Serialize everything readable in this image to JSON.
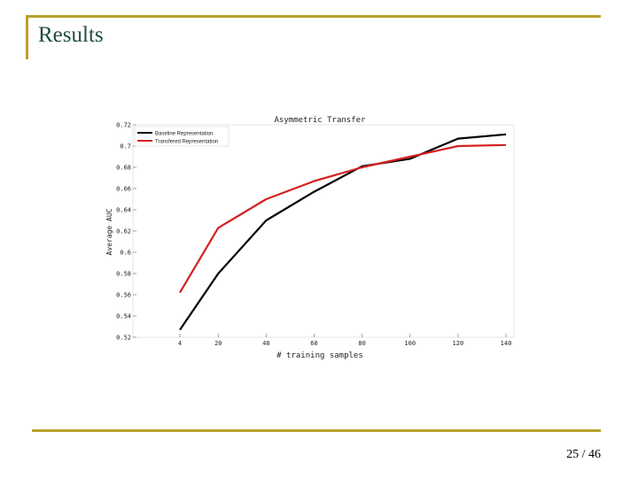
{
  "slide": {
    "title": "Results",
    "page_number": "25",
    "page_total": "46",
    "page_sep": "/"
  },
  "colors": {
    "accent_rule": "#b8a12a",
    "title_text": "#1f4e3f",
    "baseline_series": "#000000",
    "transfered_series": "#d42020"
  },
  "chart_data": {
    "type": "line",
    "title": "Asymmetric Transfer",
    "xlabel": "# training samples",
    "ylabel": "Average AUC",
    "x": [
      4,
      20,
      40,
      60,
      80,
      100,
      120,
      140
    ],
    "x_tick_labels": [
      "4",
      "20",
      "40",
      "60",
      "80",
      "100",
      "120",
      "140"
    ],
    "ylim": [
      0.52,
      0.72
    ],
    "y_ticks": [
      0.52,
      0.54,
      0.56,
      0.58,
      0.6,
      0.62,
      0.64,
      0.66,
      0.68,
      0.7,
      0.72
    ],
    "y_tick_labels": [
      "0.52",
      "0.54",
      "0.56",
      "0.58",
      "0.6",
      "0.62",
      "0.64",
      "0.66",
      "0.68",
      "0.7",
      "0.72"
    ],
    "grid": false,
    "legend_position": "top-left",
    "series": [
      {
        "name": "Baseline Representation",
        "color": "#000000",
        "values": [
          0.527,
          0.58,
          0.63,
          0.657,
          0.681,
          0.688,
          0.707,
          0.711
        ]
      },
      {
        "name": "Transfered Representation",
        "color": "#d42020",
        "values": [
          0.562,
          0.623,
          0.65,
          0.667,
          0.68,
          0.69,
          0.7,
          0.701
        ]
      }
    ]
  }
}
